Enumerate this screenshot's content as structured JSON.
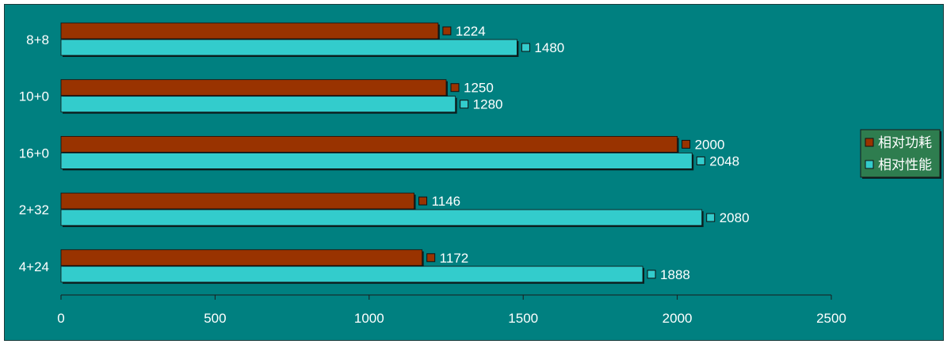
{
  "chart_data": {
    "type": "bar",
    "orientation": "horizontal",
    "categories": [
      "8+8",
      "10+0",
      "16+0",
      "2+32",
      "4+24"
    ],
    "series": [
      {
        "name": "相对功耗",
        "color": "#993300",
        "values": [
          1224,
          1250,
          2000,
          1146,
          1172
        ]
      },
      {
        "name": "相对性能",
        "color": "#33CCCC",
        "values": [
          1480,
          1280,
          2048,
          2080,
          1888
        ]
      }
    ],
    "xlim": [
      0,
      2500
    ],
    "xticks": [
      0,
      500,
      1000,
      1500,
      2000,
      2500
    ],
    "title": "",
    "xlabel": "",
    "ylabel": "",
    "grid": false,
    "legend_position": "right",
    "background_color": "#008080",
    "legend_background": "#2E7D4F"
  }
}
